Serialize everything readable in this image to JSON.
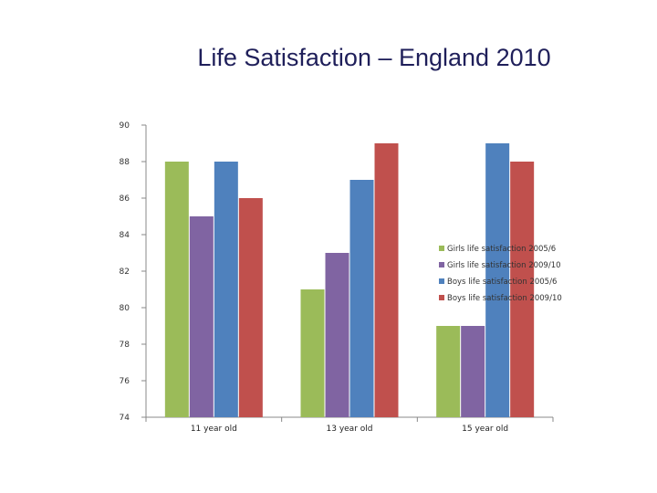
{
  "chart_data": {
    "type": "bar",
    "title": "Life Satisfaction – England 2010",
    "categories": [
      "11 year old",
      "13 year old",
      "15 year old"
    ],
    "series": [
      {
        "name": "Girls life satisfaction 2005/6",
        "color": "#9bbb59",
        "values": [
          88,
          81,
          79
        ]
      },
      {
        "name": "Girls life satisfaction 2009/10",
        "color": "#8064a2",
        "values": [
          85,
          83,
          79
        ]
      },
      {
        "name": "Boys life satisfaction 2005/6",
        "color": "#4f81bd",
        "values": [
          88,
          87,
          89
        ]
      },
      {
        "name": "Boys life satisfaction 2009/10",
        "color": "#c0504d",
        "values": [
          86,
          89,
          88
        ]
      }
    ],
    "ylim": [
      74,
      90
    ],
    "yticks": [
      "74",
      "76",
      "78",
      "80",
      "82",
      "84",
      "86",
      "88",
      "90"
    ],
    "grid": false,
    "legend": "right"
  }
}
